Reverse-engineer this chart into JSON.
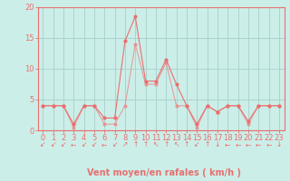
{
  "title": "",
  "xlabel": "Vent moyen/en rafales ( km/h )",
  "ylabel": "",
  "background_color": "#cceee8",
  "grid_color": "#aad4ce",
  "line_color": "#e87070",
  "line_color2": "#e89090",
  "xlim": [
    -0.5,
    23.5
  ],
  "ylim": [
    0,
    20
  ],
  "yticks": [
    0,
    5,
    10,
    15,
    20
  ],
  "xticks": [
    0,
    1,
    2,
    3,
    4,
    5,
    6,
    7,
    8,
    9,
    10,
    11,
    12,
    13,
    14,
    15,
    16,
    17,
    18,
    19,
    20,
    21,
    22,
    23
  ],
  "x": [
    0,
    1,
    2,
    3,
    4,
    5,
    6,
    7,
    8,
    9,
    10,
    11,
    12,
    13,
    14,
    15,
    16,
    17,
    18,
    19,
    20,
    21,
    22,
    23
  ],
  "wind_mean": [
    4,
    4,
    4,
    0.5,
    4,
    4,
    1,
    1,
    4,
    14,
    7.5,
    7.5,
    11,
    4,
    4,
    0.5,
    4,
    3,
    4,
    4,
    1,
    4,
    4,
    4
  ],
  "wind_gust": [
    4,
    4,
    4,
    1,
    4,
    4,
    2,
    2,
    14.5,
    18.5,
    8,
    8,
    11.5,
    7.5,
    4,
    1,
    4,
    3,
    4,
    4,
    1.5,
    4,
    4,
    4
  ],
  "line_width": 0.8,
  "marker_size": 2,
  "font_size_label": 7,
  "font_size_tick": 6,
  "arrow_symbols": [
    "↙",
    "↙",
    "↙",
    "←",
    "↙",
    "↙",
    "←",
    "↙",
    "↗",
    "↑",
    "↑",
    "↖",
    "↑",
    "↖",
    "↑",
    "↙",
    "↑",
    "↓",
    "←",
    "←",
    "←",
    "←",
    "←",
    "↓"
  ]
}
